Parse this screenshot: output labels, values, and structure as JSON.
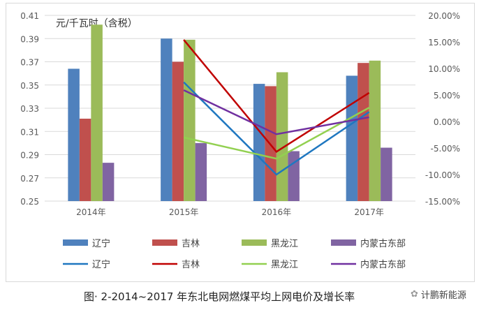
{
  "chart_data": {
    "type": "bar+line",
    "unit_label": "元/千瓦时（含税）",
    "categories": [
      "2014年",
      "2015年",
      "2016年",
      "2017年"
    ],
    "y_left": {
      "range": [
        0.25,
        0.41
      ],
      "ticks": [
        "0.25",
        "0.27",
        "0.29",
        "0.31",
        "0.33",
        "0.35",
        "0.37",
        "0.39",
        "0.41"
      ]
    },
    "y_right": {
      "range": [
        -15,
        20
      ],
      "ticks": [
        "-15.00%",
        "-10.00%",
        "-5.00%",
        "0.00%",
        "5.00%",
        "10.00%",
        "15.00%",
        "20.00%"
      ]
    },
    "grid": true,
    "legend_position": "bottom",
    "bar_series": [
      {
        "name": "辽宁",
        "color": "#4f81bd",
        "values": [
          0.364,
          0.39,
          0.351,
          0.358
        ]
      },
      {
        "name": "吉林",
        "color": "#c0504d",
        "values": [
          0.321,
          0.37,
          0.349,
          0.369
        ]
      },
      {
        "name": "黑龙江",
        "color": "#9bbb59",
        "values": [
          0.402,
          0.389,
          0.361,
          0.371
        ]
      },
      {
        "name": "内蒙古东部",
        "color": "#8064a2",
        "values": [
          0.283,
          0.3,
          0.293,
          0.296
        ]
      }
    ],
    "line_series": [
      {
        "name": "辽宁",
        "color": "#1f77c0",
        "values": [
          null,
          7.4,
          -10.0,
          1.8
        ]
      },
      {
        "name": "吉林",
        "color": "#c00000",
        "values": [
          null,
          15.4,
          -5.7,
          5.4
        ]
      },
      {
        "name": "黑龙江",
        "color": "#92d050",
        "values": [
          null,
          -3.0,
          -7.0,
          2.6
        ]
      },
      {
        "name": "内蒙古东部",
        "color": "#7030a0",
        "values": [
          null,
          5.9,
          -2.4,
          0.8
        ]
      }
    ]
  },
  "caption": "图· 2-2014~2017 年东北电网燃煤平均上网电价及增长率",
  "brand": "计鹏新能源"
}
